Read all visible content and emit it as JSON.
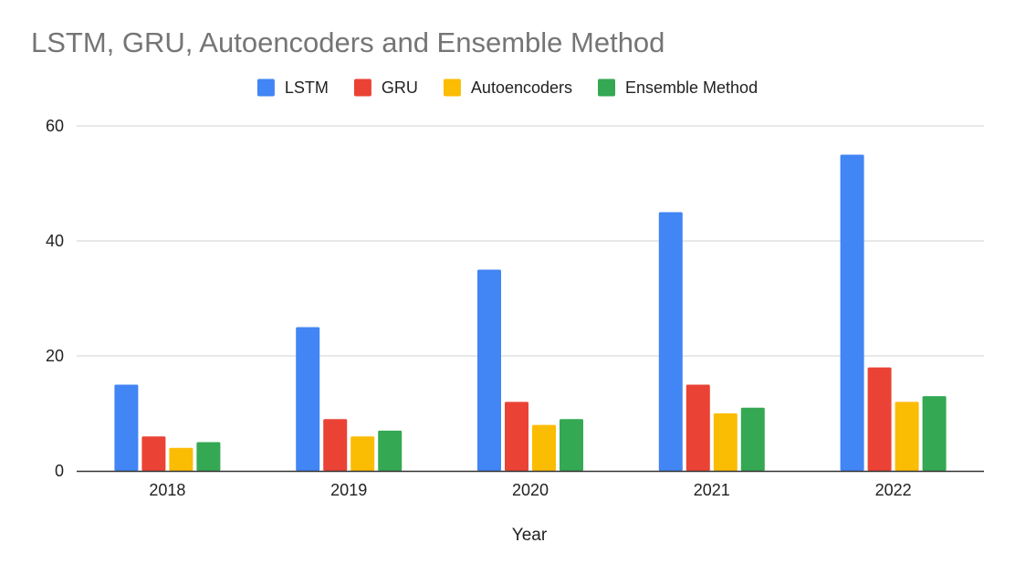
{
  "chart_data": {
    "type": "bar",
    "title": "LSTM, GRU, Autoencoders and Ensemble Method",
    "xlabel": "Year",
    "ylabel": "",
    "categories": [
      "2018",
      "2019",
      "2020",
      "2021",
      "2022"
    ],
    "series": [
      {
        "name": "LSTM",
        "color": "#4285f4",
        "values": [
          15,
          25,
          35,
          45,
          55
        ]
      },
      {
        "name": "GRU",
        "color": "#ea4335",
        "values": [
          6,
          9,
          12,
          15,
          18
        ]
      },
      {
        "name": "Autoencoders",
        "color": "#fbbc04",
        "values": [
          4,
          6,
          8,
          10,
          12
        ]
      },
      {
        "name": "Ensemble Method",
        "color": "#34a853",
        "values": [
          5,
          7,
          9,
          11,
          13
        ]
      }
    ],
    "ylim": [
      0,
      60
    ],
    "yticks": [
      0,
      20,
      40,
      60
    ],
    "grid": true,
    "legend": "top"
  }
}
